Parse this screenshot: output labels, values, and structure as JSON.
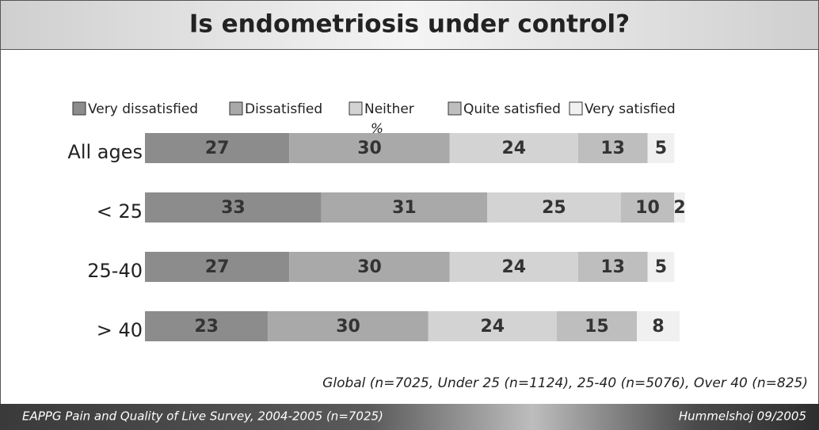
{
  "chart_data": {
    "type": "stacked-bar-horizontal",
    "title": "Is endometriosis under control?",
    "unit_label": "%",
    "categories": [
      "All ages",
      "< 25",
      "25-40",
      "> 40"
    ],
    "series": [
      {
        "name": "Very dissatisfied",
        "color": "#8c8c8c",
        "values": [
          27,
          33,
          27,
          23
        ]
      },
      {
        "name": "Dissatisfied",
        "color": "#a9a9a9",
        "values": [
          30,
          31,
          30,
          30
        ]
      },
      {
        "name": "Neither",
        "color": "#d3d3d3",
        "values": [
          24,
          25,
          24,
          24
        ]
      },
      {
        "name": "Quite satisfied",
        "color": "#bebebe",
        "values": [
          13,
          10,
          13,
          15
        ]
      },
      {
        "name": "Very satisfied",
        "color": "#f0f0f0",
        "values": [
          5,
          2,
          5,
          8
        ]
      }
    ],
    "xlim": [
      0,
      100
    ],
    "note": "Global (n=7025, Under 25 (n=1124), 25-40 (n=5076), Over 40 (n=825)",
    "footer_left": "EAPPG Pain and Quality of Live Survey, 2004-2005 (n=7025)",
    "footer_right": "Hummelshoj 09/2005"
  }
}
